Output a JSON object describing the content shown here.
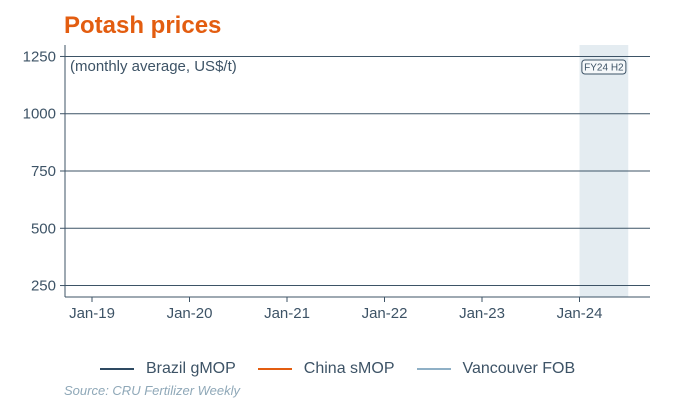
{
  "chart_data": {
    "type": "line",
    "title": "Potash prices",
    "subtitle": "(monthly average, US$/t)",
    "x_tick_labels": [
      "Jan-19",
      "Jan-20",
      "Jan-21",
      "Jan-22",
      "Jan-23",
      "Jan-24"
    ],
    "y_ticks": [
      250,
      500,
      750,
      1000,
      1250
    ],
    "ylim": [
      200,
      1300
    ],
    "xlim": [
      "2018-10",
      "2024-11"
    ],
    "grid": "horizontal",
    "legend_position": "bottom",
    "series": [
      {
        "name": "Brazil gMOP",
        "color": "#2e4a62",
        "values": []
      },
      {
        "name": "China sMOP",
        "color": "#e35d10",
        "values": []
      },
      {
        "name": "Vancouver FOB",
        "color": "#8fb0c6",
        "values": []
      }
    ],
    "highlight": {
      "label": "FY24 H2",
      "from": "2024-01",
      "to": "2024-06",
      "color": "#e4ecf1"
    },
    "source": "Source: CRU Fertilizer Weekly"
  }
}
